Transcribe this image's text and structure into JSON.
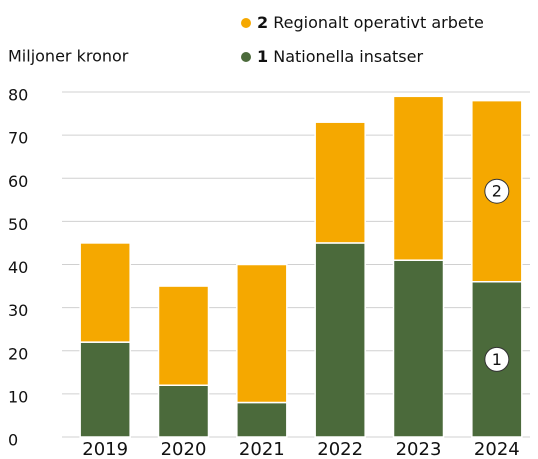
{
  "chart_data": {
    "type": "stacked_bar",
    "y_label": "Miljoner kronor",
    "categories": [
      "2019",
      "2020",
      "2021",
      "2022",
      "2023",
      "2024"
    ],
    "series": [
      {
        "label": "1",
        "name": "Nationella insatser",
        "color": "#4b6a3b",
        "values": [
          22,
          12,
          8,
          45,
          41,
          36
        ]
      },
      {
        "label": "2",
        "name": "Regionalt operativt arbete",
        "color": "#f5a800",
        "values": [
          23,
          23,
          32,
          28,
          38,
          42
        ]
      }
    ],
    "ylim": [
      0,
      80
    ],
    "yticks": [
      0,
      10,
      20,
      30,
      40,
      50,
      60,
      70,
      80
    ],
    "grid": true
  }
}
